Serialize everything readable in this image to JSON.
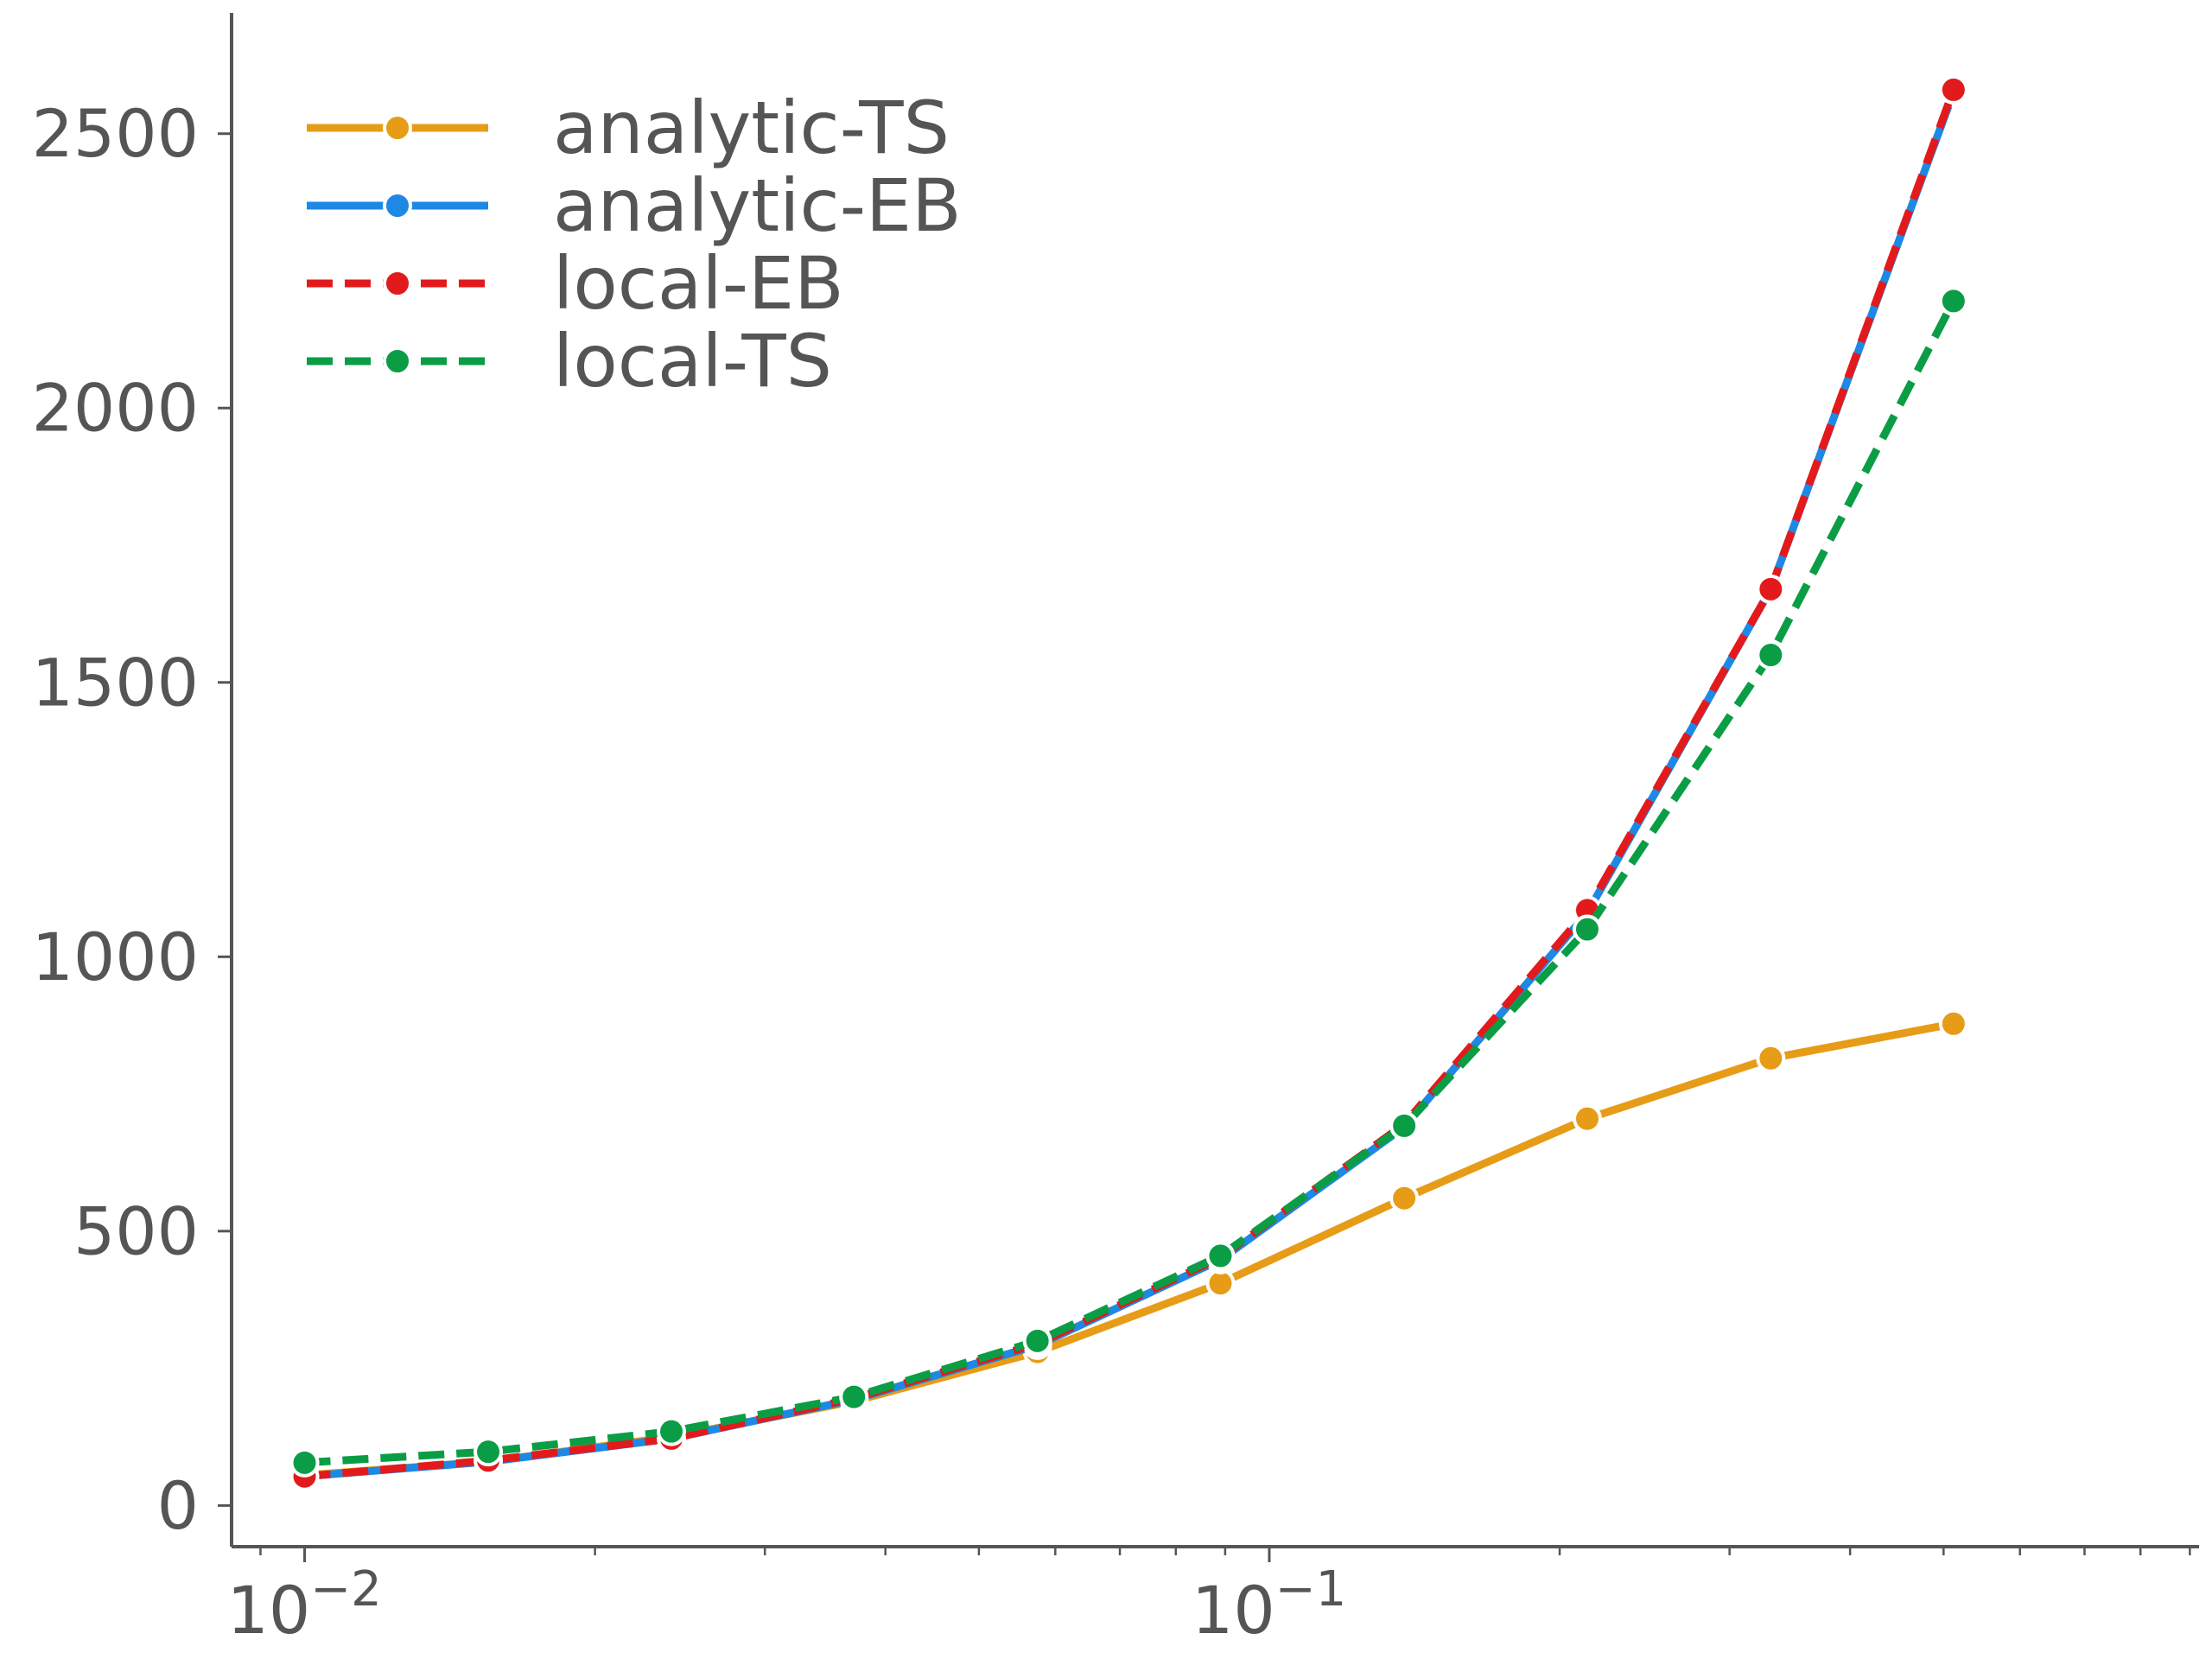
{
  "chart_data": {
    "type": "line",
    "title": "",
    "xlabel": "",
    "ylabel": "",
    "x_scale": "log",
    "xlim": [
      0.0084,
      0.92
    ],
    "ylim": [
      -75,
      2720
    ],
    "grid": false,
    "legend_position": "top-left",
    "x": [
      0.01,
      0.0155,
      0.024,
      0.0371,
      0.0575,
      0.089,
      0.138,
      0.2136,
      0.331,
      0.512
    ],
    "x_ticks": [
      {
        "value": 0.01,
        "base": "10",
        "exp": "−2"
      },
      {
        "value": 0.1,
        "base": "10",
        "exp": "−1"
      }
    ],
    "y_ticks": [
      {
        "value": 0,
        "label": "0"
      },
      {
        "value": 500,
        "label": "500"
      },
      {
        "value": 1000,
        "label": "1000"
      },
      {
        "value": 1500,
        "label": "1500"
      },
      {
        "value": 2000,
        "label": "2000"
      },
      {
        "value": 2500,
        "label": "2500"
      }
    ],
    "series": [
      {
        "name": "analytic-TS",
        "color": "#e69c17",
        "dash": "solid",
        "values": [
          55,
          80,
          125,
          190,
          280,
          405,
          560,
          705,
          815,
          878
        ]
      },
      {
        "name": "analytic-EB",
        "color": "#1e88e5",
        "dash": "solid",
        "values": [
          53,
          80,
          122,
          193,
          292,
          448,
          690,
          1080,
          1670,
          2575
        ]
      },
      {
        "name": "local-EB",
        "color": "#e31a1c",
        "dash": "dashed",
        "values": [
          53,
          82,
          122,
          195,
          295,
          452,
          695,
          1085,
          1670,
          2580
        ]
      },
      {
        "name": "local-TS",
        "color": "#0a9d45",
        "dash": "dashed",
        "values": [
          78,
          98,
          135,
          198,
          300,
          455,
          692,
          1050,
          1550,
          2195
        ]
      }
    ]
  }
}
